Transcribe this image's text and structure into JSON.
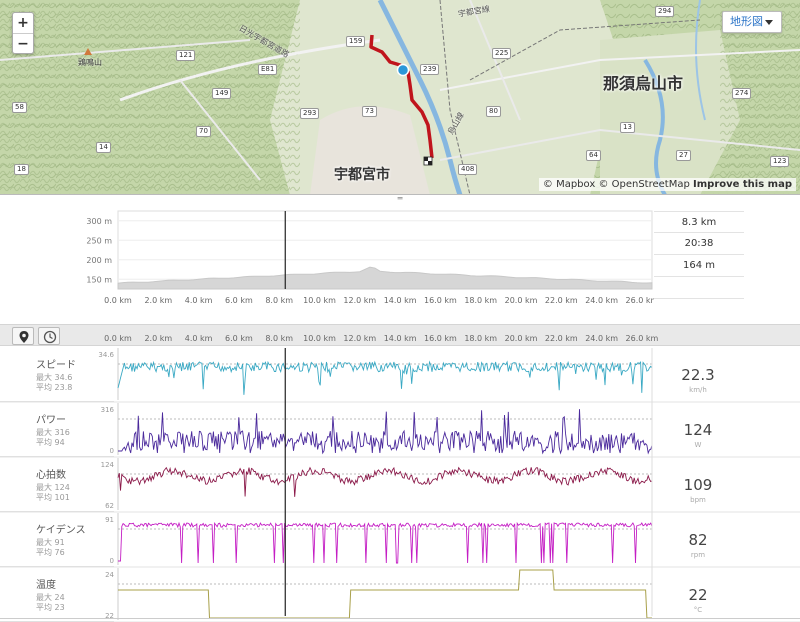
{
  "map": {
    "zoom_in": "+",
    "zoom_out": "−",
    "map_type": "地形図",
    "attribution": {
      "mapbox": "© Mapbox",
      "osm": "© OpenStreetMap",
      "improve": "Improve this map"
    },
    "city_utsunomiya": "宇都宮市",
    "city_nasukarasuyama": "那須烏山市",
    "peak_name": "鶏鳴山",
    "road_labels": [
      "159",
      "239",
      "225",
      "121",
      "E81",
      "149",
      "70",
      "293",
      "73",
      "80",
      "14",
      "58",
      "18",
      "408",
      "294",
      "274",
      "27",
      "64",
      "13",
      "123"
    ],
    "road_names": [
      "日光宇都宮道路",
      "宇都宮線",
      "烏山線"
    ]
  },
  "elevation": {
    "y_ticks": [
      "300 m",
      "250 m",
      "200 m",
      "150 m"
    ],
    "x_ticks": [
      "0.0 km",
      "2.0 km",
      "4.0 km",
      "6.0 km",
      "8.0 km",
      "10.0 km",
      "12.0 km",
      "14.0 km",
      "16.0 km",
      "18.0 km",
      "20.0 km",
      "22.0 km",
      "24.0 km",
      "26.0 km"
    ],
    "distance": "8.3 km",
    "time": "20:38",
    "altitude": "164 m"
  },
  "streams": {
    "x_ticks": [
      "0.0 km",
      "2.0 km",
      "4.0 km",
      "6.0 km",
      "8.0 km",
      "10.0 km",
      "12.0 km",
      "14.0 km",
      "16.0 km",
      "18.0 km",
      "20.0 km",
      "22.0 km",
      "24.0 km",
      "26.0 km"
    ],
    "rows": [
      {
        "name": "スピード",
        "max": "最大 34.6",
        "avg": "平均 23.8",
        "top": "34.6",
        "bottom": "",
        "value": "22.3",
        "unit": "km/h",
        "color": "#3aa9c4"
      },
      {
        "name": "パワー",
        "max": "最大 316",
        "avg": "平均 94",
        "top": "316",
        "bottom": "0",
        "value": "124",
        "unit": "W",
        "color": "#4b2a9c"
      },
      {
        "name": "心拍数",
        "max": "最大 124",
        "avg": "平均 101",
        "top": "124",
        "bottom": "62",
        "value": "109",
        "unit": "bpm",
        "color": "#8b1a4a"
      },
      {
        "name": "ケイデンス",
        "max": "最大 91",
        "avg": "平均 76",
        "top": "91",
        "bottom": "0",
        "value": "82",
        "unit": "rpm",
        "color": "#c41ec4"
      },
      {
        "name": "温度",
        "max": "最大 24",
        "avg": "平均 23",
        "top": "24",
        "bottom": "22",
        "value": "22",
        "unit": "°C",
        "color": "#a8a04a"
      }
    ]
  }
}
